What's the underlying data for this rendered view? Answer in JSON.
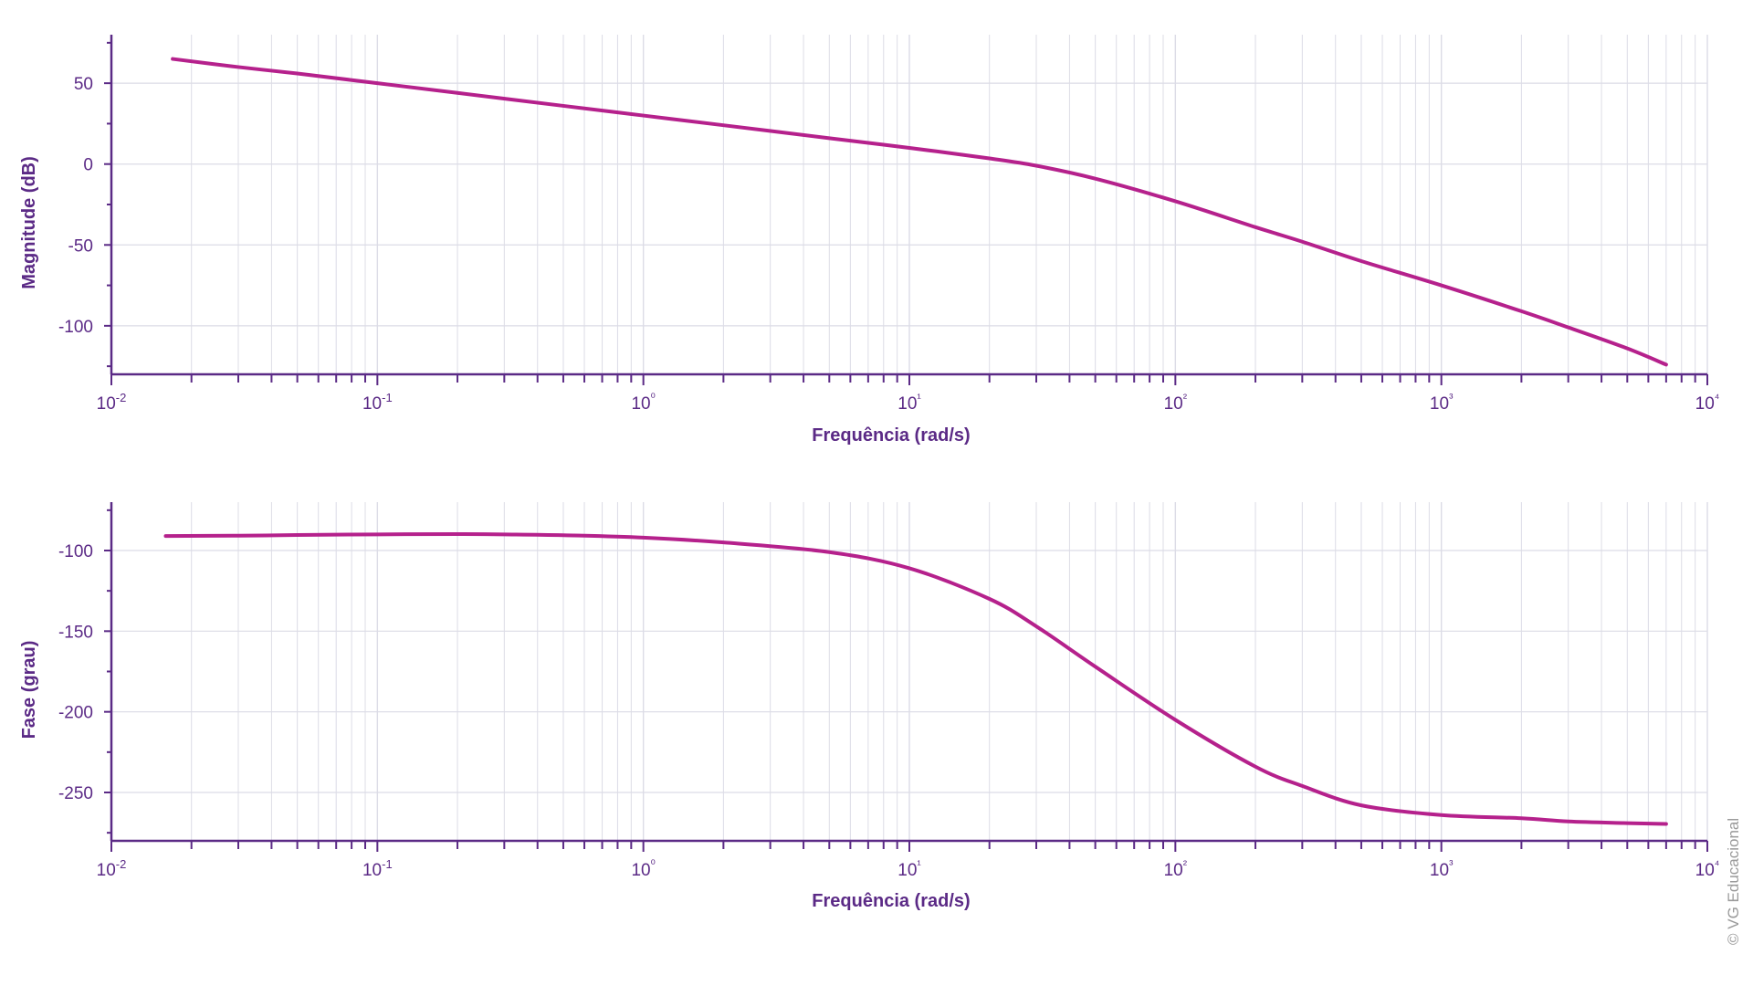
{
  "chart_data": [
    {
      "type": "line",
      "xlabel": "Frequência (rad/s)",
      "ylabel": "Magnitude (dB)",
      "xscale": "log",
      "xlim": [
        0.01,
        10000
      ],
      "ylim": [
        -130,
        80
      ],
      "x_ticks": [
        "10-2",
        "10-1",
        "10⁰",
        "10¹",
        "10²",
        "10³",
        "10⁴"
      ],
      "y_ticks": [
        50,
        0,
        -50,
        -100
      ],
      "grid": true,
      "color": "#b5218c",
      "series": [
        {
          "x": [
            0.017,
            0.03,
            0.05,
            0.1,
            0.2,
            0.5,
            1,
            2,
            5,
            10,
            20,
            30,
            50,
            100,
            200,
            300,
            500,
            1000,
            2000,
            3000,
            5000,
            7000
          ],
          "y": [
            65,
            60,
            56,
            50,
            44,
            36,
            30,
            24,
            16,
            10,
            3.5,
            -1,
            -9,
            -23,
            -39,
            -48,
            -60,
            -75,
            -91,
            -101,
            -114,
            -124
          ]
        }
      ]
    },
    {
      "type": "line",
      "xlabel": "Frequência (rad/s)",
      "ylabel": "Fase (grau)",
      "xscale": "log",
      "xlim": [
        0.01,
        10000
      ],
      "ylim": [
        -280,
        -70
      ],
      "x_ticks": [
        "10-2",
        "10-1",
        "10⁰",
        "10¹",
        "10²",
        "10³",
        "10⁴"
      ],
      "y_ticks": [
        -100,
        -150,
        -200,
        -250
      ],
      "grid": true,
      "color": "#b5218c",
      "series": [
        {
          "x": [
            0.016,
            0.03,
            0.05,
            0.1,
            0.2,
            0.3,
            0.5,
            1,
            2,
            5,
            10,
            20,
            30,
            50,
            100,
            200,
            300,
            500,
            1000,
            2000,
            3000,
            5000,
            7000
          ],
          "y": [
            -91,
            -90.8,
            -90.4,
            -90,
            -89.8,
            -90,
            -90.5,
            -92,
            -95,
            -101,
            -111,
            -130,
            -147,
            -172,
            -205,
            -234,
            -246,
            -258,
            -264,
            -266,
            -268,
            -269,
            -269.5
          ]
        }
      ]
    }
  ],
  "copyright": "© VG Educacional"
}
